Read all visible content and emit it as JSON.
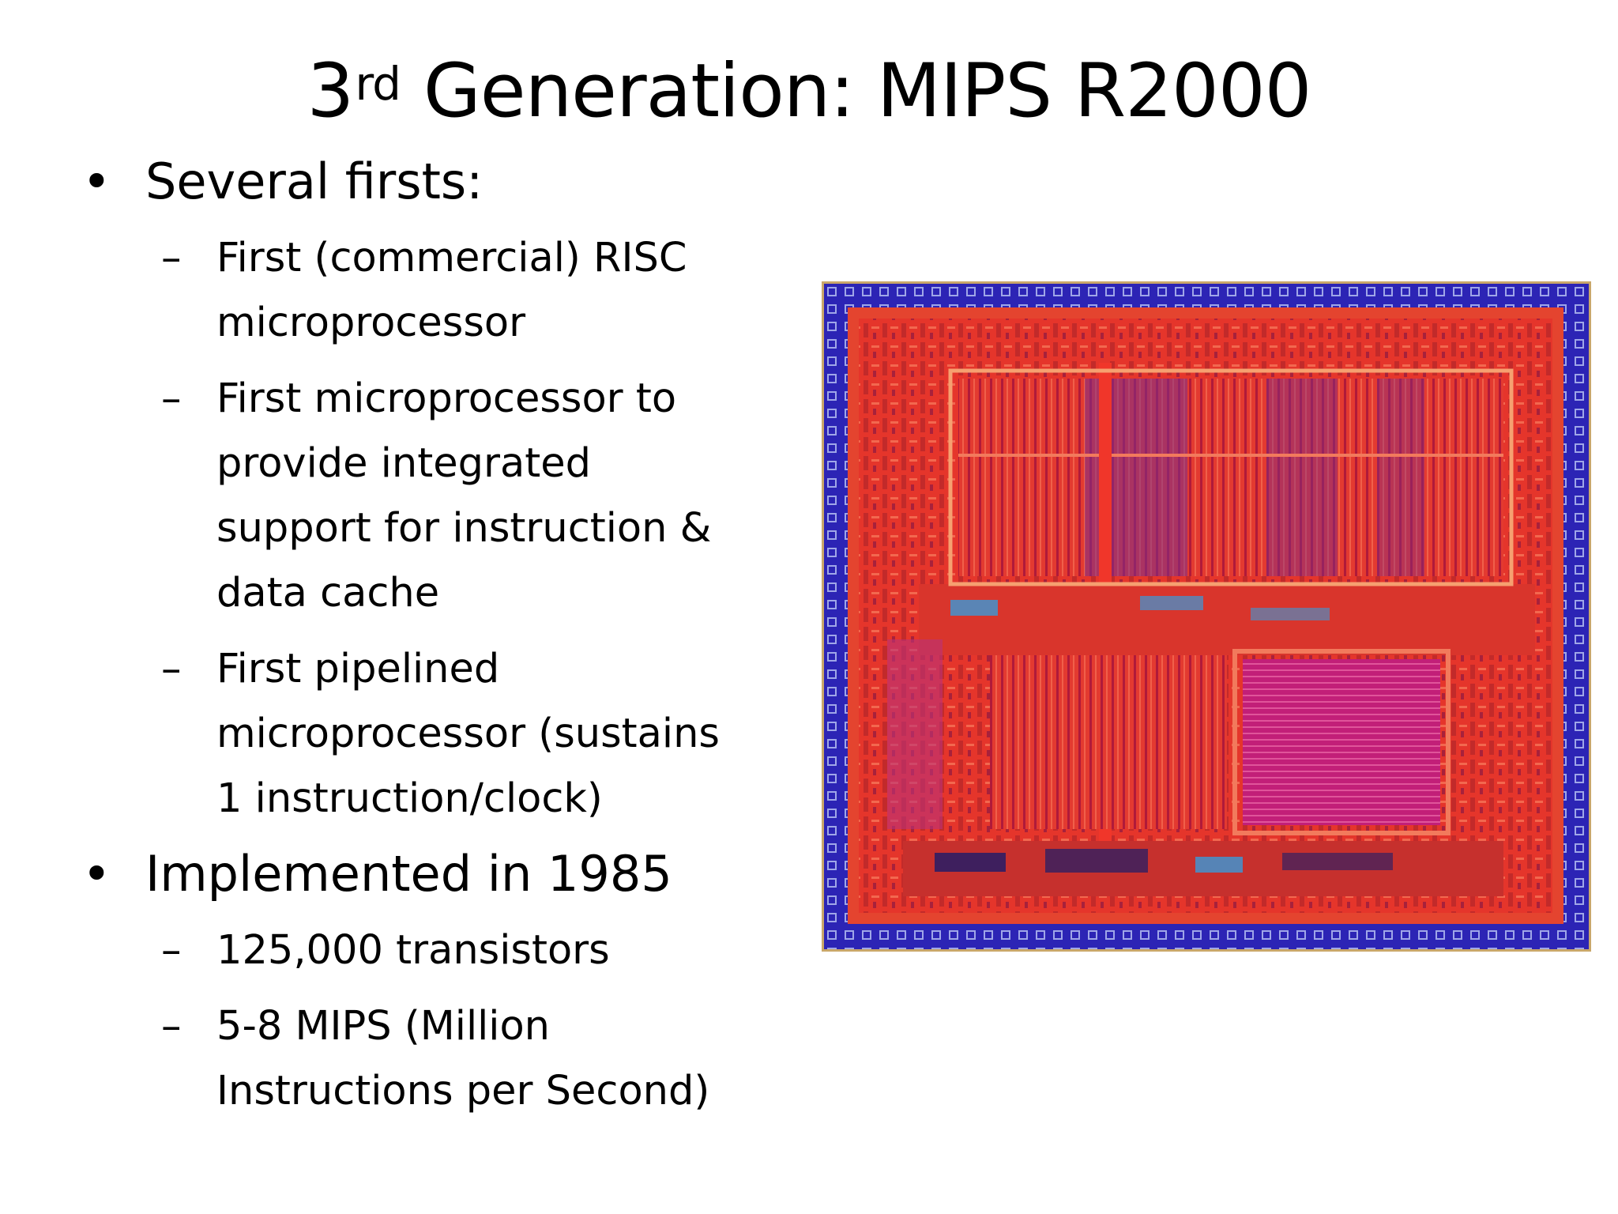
{
  "slide": {
    "title_number": "3",
    "title_superscript": "rd",
    "title_text": " Generation: MIPS R2000",
    "bullets": [
      {
        "text": "Several firsts:",
        "subitems": [
          [
            "First (commercial) RISC",
            "microprocessor"
          ],
          [
            "First microprocessor to",
            "provide integrated",
            "support for instruction &",
            "data cache"
          ],
          [
            "First pipelined",
            "microprocessor (sustains",
            "1 instruction/clock)"
          ]
        ]
      },
      {
        "text": "Implemented in 1985",
        "subitems": [
          [
            "125,000 transistors"
          ],
          [
            "5-8 MIPS (Million",
            "Instructions per Second)"
          ]
        ]
      }
    ],
    "bullet_glyph": "•",
    "dash_glyph": "–"
  },
  "die_image": {
    "icon": "microprocessor-die-photo",
    "colors": {
      "border_blue": "#2a23b8",
      "logic_red": "#e8342c",
      "cache_magenta": "#c8207a",
      "frame_gold": "#c9a76a"
    }
  }
}
